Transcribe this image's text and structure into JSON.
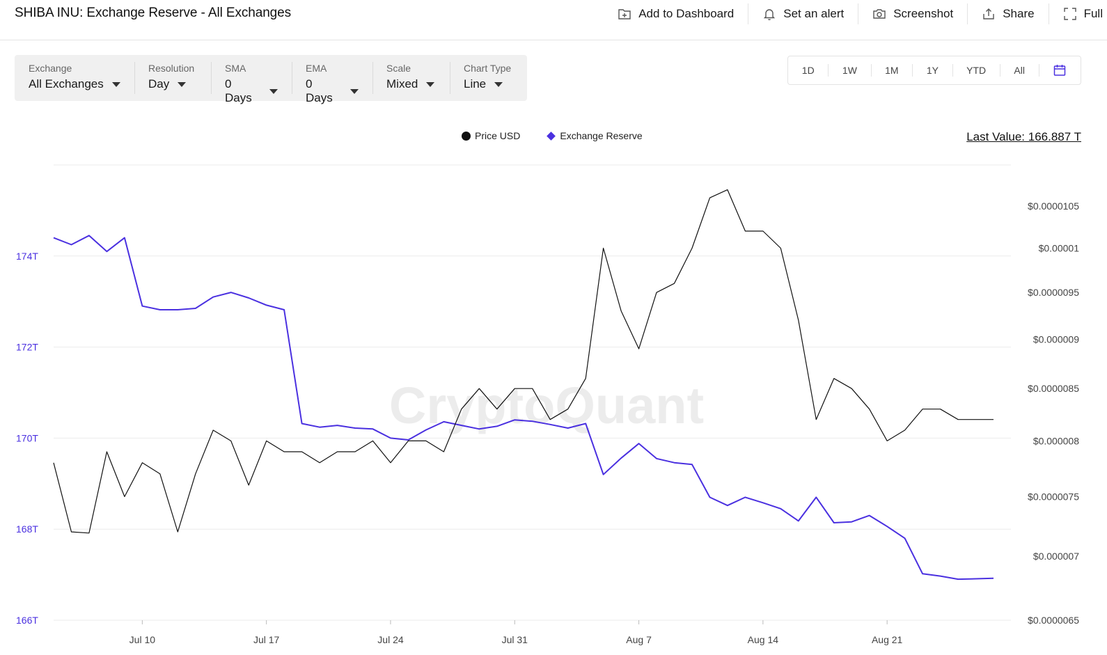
{
  "header": {
    "title": "SHIBA INU: Exchange Reserve - All Exchanges",
    "actions": [
      {
        "label": "Add to Dashboard",
        "icon": "add-to-dashboard-icon"
      },
      {
        "label": "Set an alert",
        "icon": "bell-icon"
      },
      {
        "label": "Screenshot",
        "icon": "camera-icon"
      },
      {
        "label": "Share",
        "icon": "share-icon"
      },
      {
        "label": "Full",
        "icon": "fullscreen-icon"
      }
    ]
  },
  "filters": [
    {
      "label": "Exchange",
      "value": "All Exchanges"
    },
    {
      "label": "Resolution",
      "value": "Day"
    },
    {
      "label": "SMA",
      "value": "0 Days"
    },
    {
      "label": "EMA",
      "value": "0 Days"
    },
    {
      "label": "Scale",
      "value": "Mixed"
    },
    {
      "label": "Chart Type",
      "value": "Line"
    }
  ],
  "ranges": [
    "1D",
    "1W",
    "1M",
    "1Y",
    "YTD",
    "All"
  ],
  "legend": {
    "price": "Price USD",
    "reserve": "Exchange Reserve",
    "last_value": "Last Value: 166.887 T"
  },
  "colors": {
    "reserve": "#4a30e0",
    "price": "#111111",
    "grid": "#ebebeb"
  },
  "watermark": "CryptoQuant",
  "chart_data": {
    "type": "line",
    "x": [
      "Jul 5",
      "Jul 6",
      "Jul 7",
      "Jul 8",
      "Jul 9",
      "Jul 10",
      "Jul 11",
      "Jul 12",
      "Jul 13",
      "Jul 14",
      "Jul 15",
      "Jul 16",
      "Jul 17",
      "Jul 18",
      "Jul 19",
      "Jul 20",
      "Jul 21",
      "Jul 22",
      "Jul 23",
      "Jul 24",
      "Jul 25",
      "Jul 26",
      "Jul 27",
      "Jul 28",
      "Jul 29",
      "Jul 30",
      "Jul 31",
      "Aug 1",
      "Aug 2",
      "Aug 3",
      "Aug 4",
      "Aug 5",
      "Aug 6",
      "Aug 7",
      "Aug 8",
      "Aug 9",
      "Aug 10",
      "Aug 11",
      "Aug 12",
      "Aug 13",
      "Aug 14",
      "Aug 15",
      "Aug 16",
      "Aug 17",
      "Aug 18",
      "Aug 19",
      "Aug 20",
      "Aug 21",
      "Aug 22",
      "Aug 23",
      "Aug 24",
      "Aug 25",
      "Aug 26",
      "Aug 27"
    ],
    "xticks": [
      "Jul 10",
      "Jul 17",
      "Jul 24",
      "Jul 31",
      "Aug 7",
      "Aug 14",
      "Aug 21"
    ],
    "series": [
      {
        "name": "Exchange Reserve",
        "axis": "left",
        "values": [
          174.4,
          174.25,
          174.45,
          174.1,
          174.4,
          172.9,
          172.82,
          172.82,
          172.85,
          173.1,
          173.2,
          173.08,
          172.92,
          172.82,
          170.32,
          170.24,
          170.28,
          170.22,
          170.2,
          170.0,
          169.96,
          170.18,
          170.36,
          170.28,
          170.2,
          170.26,
          170.4,
          170.37,
          170.3,
          170.22,
          170.32,
          169.2,
          169.56,
          169.88,
          169.55,
          169.46,
          169.42,
          168.7,
          168.52,
          168.7,
          168.58,
          168.45,
          168.18,
          168.7,
          168.14,
          168.16,
          168.3,
          168.06,
          167.8,
          167.02,
          166.97,
          166.9,
          166.91,
          166.92
        ]
      },
      {
        "name": "Price USD",
        "axis": "right",
        "values": [
          7.8e-06,
          7.2e-06,
          7.19e-06,
          7.9e-06,
          7.5e-06,
          7.8e-06,
          7.7e-06,
          7.2e-06,
          7.7e-06,
          8.1e-06,
          8e-06,
          7.6e-06,
          8e-06,
          7.9e-06,
          7.9e-06,
          7.8e-06,
          7.9e-06,
          7.9e-06,
          8e-06,
          7.8e-06,
          8e-06,
          8e-06,
          7.9e-06,
          8.3e-06,
          8.5e-06,
          8.3e-06,
          8.5e-06,
          8.5e-06,
          8.2e-06,
          8.3e-06,
          8.6e-06,
          1e-05,
          9.3e-06,
          8.9e-06,
          9.5e-06,
          9.6e-06,
          1e-05,
          1.06e-05,
          1.07e-05,
          1.02e-05,
          1.02e-05,
          1e-05,
          9.2e-06,
          8.2e-06,
          8.6e-06,
          8.5e-06,
          8.3e-06,
          8e-06,
          8.1e-06,
          8.3e-06,
          8.3e-06,
          8.2e-06,
          8.2e-06,
          8.2e-06
        ]
      }
    ],
    "y_left": {
      "ticks": [
        "166T",
        "168T",
        "170T",
        "172T",
        "174T"
      ],
      "min": 166,
      "max": 176
    },
    "y_right": {
      "ticks": [
        "$0.0000065",
        "$0.000007",
        "$0.0000075",
        "$0.000008",
        "$0.0000085",
        "$0.000009",
        "$0.0000095",
        "$0.00001",
        "$0.0000105"
      ],
      "scale": "log",
      "min": 6.5e-06,
      "max": 1.05e-05
    },
    "grid": true,
    "legend_position": "top-center"
  }
}
